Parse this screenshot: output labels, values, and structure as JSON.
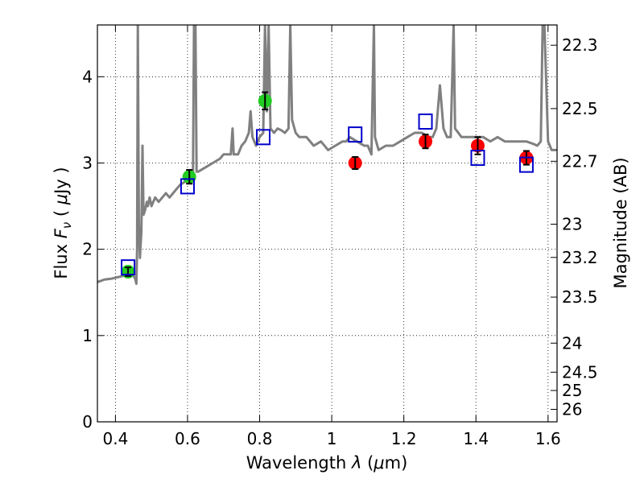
{
  "chart_data": {
    "type": "scatter",
    "xlabel": "Wavelength  λ (μm)",
    "ylabel": "Flux  F_ν  ( μJy )",
    "ylabel_right": "Magnitude (AB)",
    "xlim": [
      0.35,
      1.625
    ],
    "ylim": [
      0,
      4.6
    ],
    "grid": true,
    "x_ticks": [
      0.4,
      0.6,
      0.8,
      1.0,
      1.2,
      1.4,
      1.6
    ],
    "x_tick_labels": [
      "0.4",
      "0.6",
      "0.8",
      "1",
      "1.2",
      "1.4",
      "1.6"
    ],
    "y_ticks": [
      0,
      1,
      2,
      3,
      4
    ],
    "y_tick_labels": [
      "0",
      "1",
      "2",
      "3",
      "4"
    ],
    "right_ticks": [
      {
        "value": 26,
        "label": "26"
      },
      {
        "value": 25,
        "label": "25"
      },
      {
        "value": 24.5,
        "label": "24.5"
      },
      {
        "value": 24,
        "label": "24"
      },
      {
        "value": 23.5,
        "label": "23.5"
      },
      {
        "value": 23.2,
        "label": "23.2"
      },
      {
        "value": 23,
        "label": "23"
      },
      {
        "value": 22.7,
        "label": "22.7"
      },
      {
        "value": 22.5,
        "label": "22.5"
      },
      {
        "value": 22.3,
        "label": "22.3"
      }
    ],
    "series": [
      {
        "kind": "spectrum",
        "color": "#808080",
        "points": [
          [
            0.35,
            1.62
          ],
          [
            0.37,
            1.65
          ],
          [
            0.39,
            1.66
          ],
          [
            0.41,
            1.68
          ],
          [
            0.43,
            1.7
          ],
          [
            0.445,
            1.72
          ],
          [
            0.455,
            1.66
          ],
          [
            0.458,
            1.6
          ],
          [
            0.46,
            2.0
          ],
          [
            0.462,
            4.6
          ],
          [
            0.465,
            2.3
          ],
          [
            0.468,
            1.9
          ],
          [
            0.472,
            2.2
          ],
          [
            0.475,
            3.2
          ],
          [
            0.478,
            2.4
          ],
          [
            0.482,
            2.45
          ],
          [
            0.487,
            2.55
          ],
          [
            0.49,
            2.5
          ],
          [
            0.495,
            2.6
          ],
          [
            0.5,
            2.5
          ],
          [
            0.51,
            2.6
          ],
          [
            0.52,
            2.55
          ],
          [
            0.53,
            2.6
          ],
          [
            0.54,
            2.65
          ],
          [
            0.55,
            2.6
          ],
          [
            0.56,
            2.65
          ],
          [
            0.57,
            2.7
          ],
          [
            0.58,
            2.75
          ],
          [
            0.6,
            2.8
          ],
          [
            0.61,
            2.85
          ],
          [
            0.615,
            2.82
          ],
          [
            0.618,
            4.6
          ],
          [
            0.622,
            4.6
          ],
          [
            0.625,
            2.9
          ],
          [
            0.63,
            2.9
          ],
          [
            0.65,
            2.95
          ],
          [
            0.67,
            3.0
          ],
          [
            0.69,
            3.05
          ],
          [
            0.7,
            3.1
          ],
          [
            0.72,
            3.1
          ],
          [
            0.725,
            3.4
          ],
          [
            0.728,
            3.1
          ],
          [
            0.74,
            3.1
          ],
          [
            0.75,
            3.2
          ],
          [
            0.76,
            3.25
          ],
          [
            0.77,
            3.35
          ],
          [
            0.775,
            3.6
          ],
          [
            0.78,
            3.3
          ],
          [
            0.79,
            3.2
          ],
          [
            0.8,
            3.3
          ],
          [
            0.81,
            3.35
          ],
          [
            0.815,
            4.6
          ],
          [
            0.82,
            3.6
          ],
          [
            0.825,
            4.6
          ],
          [
            0.83,
            3.4
          ],
          [
            0.84,
            3.35
          ],
          [
            0.85,
            3.4
          ],
          [
            0.86,
            3.38
          ],
          [
            0.87,
            3.35
          ],
          [
            0.88,
            3.4
          ],
          [
            0.885,
            4.6
          ],
          [
            0.89,
            3.5
          ],
          [
            0.9,
            3.35
          ],
          [
            0.91,
            3.3
          ],
          [
            0.93,
            3.3
          ],
          [
            0.95,
            3.2
          ],
          [
            0.97,
            3.25
          ],
          [
            0.99,
            3.15
          ],
          [
            1.01,
            3.2
          ],
          [
            1.03,
            3.25
          ],
          [
            1.04,
            3.25
          ],
          [
            1.05,
            3.3
          ],
          [
            1.07,
            3.25
          ],
          [
            1.09,
            3.2
          ],
          [
            1.1,
            3.2
          ],
          [
            1.11,
            3.1
          ],
          [
            1.117,
            4.6
          ],
          [
            1.12,
            3.3
          ],
          [
            1.13,
            3.15
          ],
          [
            1.15,
            3.2
          ],
          [
            1.17,
            3.2
          ],
          [
            1.19,
            3.25
          ],
          [
            1.21,
            3.3
          ],
          [
            1.23,
            3.35
          ],
          [
            1.25,
            3.35
          ],
          [
            1.27,
            3.3
          ],
          [
            1.28,
            3.3
          ],
          [
            1.29,
            3.4
          ],
          [
            1.3,
            3.9
          ],
          [
            1.31,
            3.4
          ],
          [
            1.32,
            3.3
          ],
          [
            1.33,
            3.3
          ],
          [
            1.338,
            4.6
          ],
          [
            1.342,
            3.4
          ],
          [
            1.36,
            3.3
          ],
          [
            1.38,
            3.3
          ],
          [
            1.4,
            3.3
          ],
          [
            1.42,
            3.3
          ],
          [
            1.44,
            3.25
          ],
          [
            1.46,
            3.3
          ],
          [
            1.48,
            3.25
          ],
          [
            1.5,
            3.25
          ],
          [
            1.52,
            3.25
          ],
          [
            1.54,
            3.25
          ],
          [
            1.56,
            3.22
          ],
          [
            1.57,
            3.2
          ],
          [
            1.58,
            3.25
          ],
          [
            1.585,
            4.6
          ],
          [
            1.59,
            4.6
          ],
          [
            1.6,
            3.25
          ],
          [
            1.61,
            3.15
          ],
          [
            1.625,
            3.15
          ]
        ]
      },
      {
        "kind": "error-points",
        "color": "#22cc22",
        "points": [
          {
            "x": 0.435,
            "y": 1.74,
            "err": 0.05
          },
          {
            "x": 0.605,
            "y": 2.84,
            "err": 0.08
          },
          {
            "x": 0.815,
            "y": 3.72,
            "err": 0.1
          }
        ]
      },
      {
        "kind": "error-points",
        "color": "#ff0000",
        "points": [
          {
            "x": 1.065,
            "y": 3.0,
            "err": 0.07
          },
          {
            "x": 1.26,
            "y": 3.25,
            "err": 0.08
          },
          {
            "x": 1.405,
            "y": 3.2,
            "err": 0.1
          },
          {
            "x": 1.54,
            "y": 3.06,
            "err": 0.08
          }
        ]
      },
      {
        "kind": "open-squares",
        "color": "#0000cc",
        "points": [
          {
            "x": 0.435,
            "y": 1.79
          },
          {
            "x": 0.6,
            "y": 2.73
          },
          {
            "x": 0.81,
            "y": 3.3
          },
          {
            "x": 1.065,
            "y": 3.33
          },
          {
            "x": 1.26,
            "y": 3.48
          },
          {
            "x": 1.405,
            "y": 3.06
          },
          {
            "x": 1.54,
            "y": 2.98
          }
        ]
      }
    ]
  }
}
